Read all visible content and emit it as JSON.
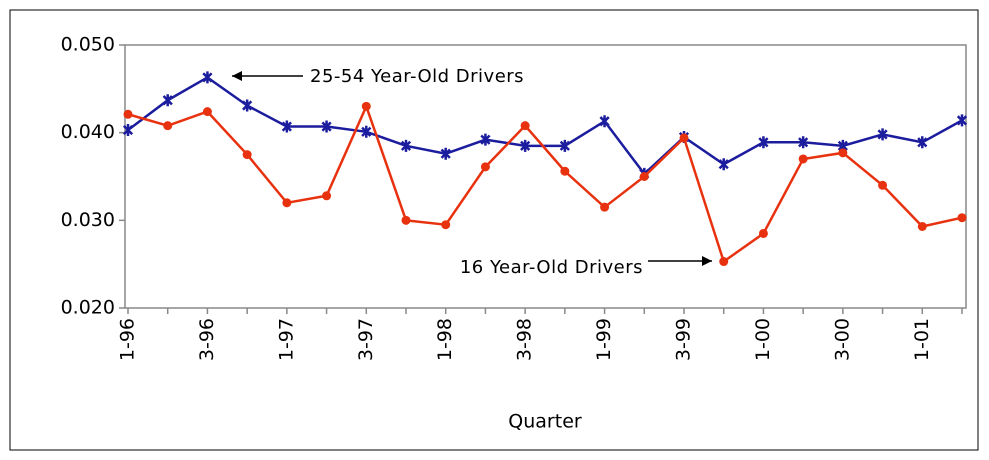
{
  "chart_data": {
    "type": "line",
    "x_label": "Quarter",
    "categories": [
      "1-96",
      null,
      "3-96",
      null,
      "1-97",
      null,
      "3-97",
      null,
      "1-98",
      null,
      "3-98",
      null,
      "1-99",
      null,
      "3-99",
      null,
      "1-00",
      null,
      "3-00",
      null,
      "1-01",
      null
    ],
    "series": [
      {
        "name": "25-54 Year-Old Drivers",
        "color": "#1c1c9e",
        "marker": "asterisk",
        "values": [
          0.0403,
          0.0437,
          0.0463,
          0.0431,
          0.0407,
          0.0407,
          0.0401,
          0.0385,
          0.0376,
          0.0392,
          0.0385,
          0.0385,
          0.0413,
          0.0353,
          0.0395,
          0.0364,
          0.0389,
          0.0389,
          0.0385,
          0.0398,
          0.0389,
          0.0414
        ]
      },
      {
        "name": "16 Year-Old Drivers",
        "color": "#e8320f",
        "marker": "circle",
        "values": [
          0.0421,
          0.0408,
          0.0424,
          0.0375,
          0.032,
          0.0328,
          0.043,
          0.03,
          0.0295,
          0.0361,
          0.0408,
          0.0356,
          0.0315,
          0.035,
          0.0394,
          0.0253,
          0.0285,
          0.037,
          0.0377,
          0.034,
          0.0293,
          0.0303
        ]
      }
    ],
    "ylim": [
      0.02,
      0.05
    ],
    "yticks": [
      {
        "value": 0.02,
        "label": "0.020"
      },
      {
        "value": 0.03,
        "label": "0.030"
      },
      {
        "value": 0.04,
        "label": "0.040"
      },
      {
        "value": 0.05,
        "label": "0.050"
      }
    ]
  }
}
